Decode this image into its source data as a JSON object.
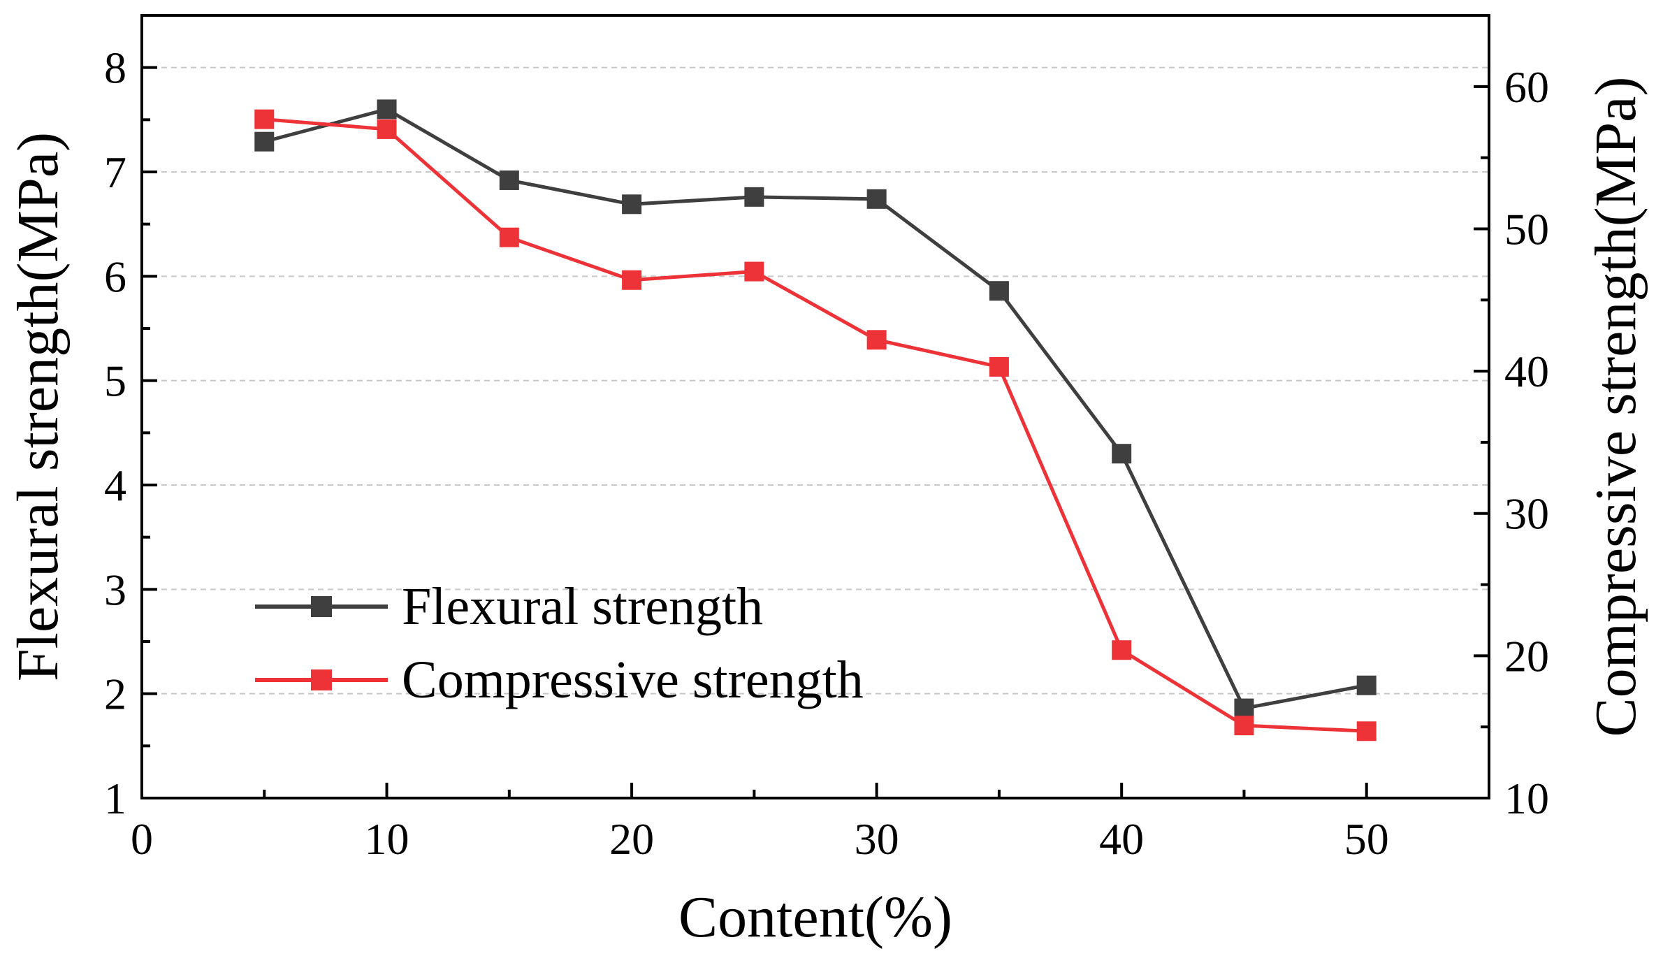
{
  "chart_data": {
    "type": "line",
    "title": "",
    "xlabel": "Content(%)",
    "ylabel_left": "Flexural strength(MPa)",
    "ylabel_right": "Compressive strength(MPa)",
    "xlim": [
      0,
      55
    ],
    "ylim_left": [
      1,
      8.5
    ],
    "ylim_right": [
      10,
      65
    ],
    "x_ticks": [
      0,
      10,
      20,
      30,
      40,
      50
    ],
    "x_tick_labels": [
      "0",
      "10",
      "20",
      "30",
      "40",
      "50"
    ],
    "y_left_ticks": [
      1,
      2,
      3,
      4,
      5,
      6,
      7,
      8
    ],
    "y_left_tick_labels": [
      "1",
      "2",
      "3",
      "4",
      "5",
      "6",
      "7",
      "8"
    ],
    "y_right_ticks": [
      10,
      20,
      30,
      40,
      50,
      60
    ],
    "y_right_tick_labels": [
      "10",
      "20",
      "30",
      "40",
      "50",
      "60"
    ],
    "x": [
      5,
      10,
      15,
      20,
      25,
      30,
      35,
      40,
      45,
      50
    ],
    "grid": true,
    "legend_position": "lower-left",
    "series": [
      {
        "name": "Flexural strength",
        "axis": "left",
        "color": "#3f3f3f",
        "values": [
          7.29,
          7.6,
          6.92,
          6.69,
          6.76,
          6.74,
          5.86,
          4.3,
          1.86,
          2.08
        ]
      },
      {
        "name": "Compressive strength",
        "axis": "right",
        "color": "#ee3338",
        "values": [
          57.7,
          57.0,
          49.4,
          46.4,
          47.0,
          42.2,
          40.3,
          20.4,
          15.1,
          14.7
        ]
      }
    ]
  }
}
